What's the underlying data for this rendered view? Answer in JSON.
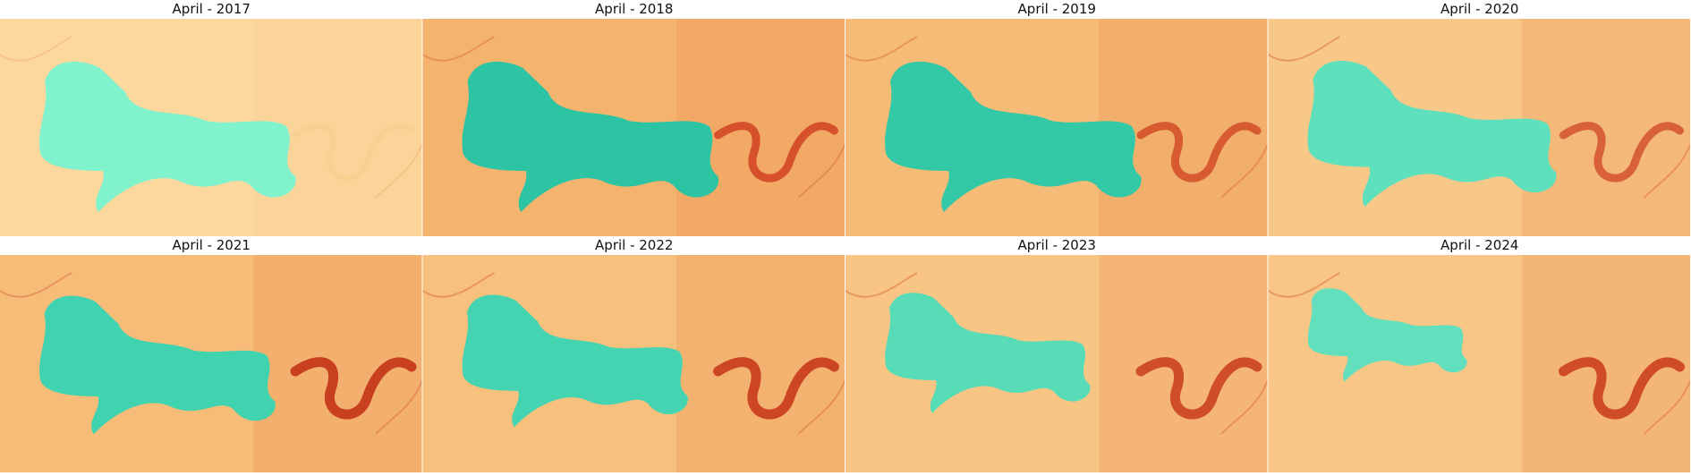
{
  "panels": [
    {
      "title": "April - 2017"
    },
    {
      "title": "April - 2018"
    },
    {
      "title": "April - 2019"
    },
    {
      "title": "April - 2020"
    },
    {
      "title": "April - 2021"
    },
    {
      "title": "April - 2022"
    },
    {
      "title": "April - 2023"
    },
    {
      "title": "April - 2024"
    }
  ]
}
